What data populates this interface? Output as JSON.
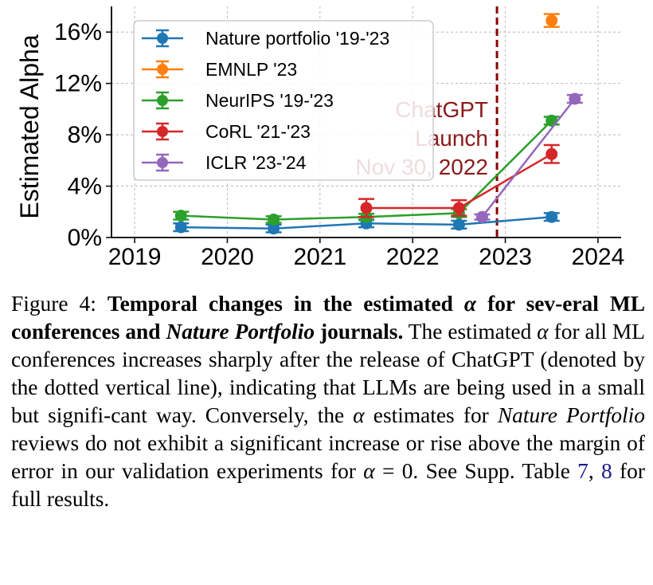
{
  "chart_data": {
    "type": "line",
    "ylabel": "Estimated Alpha",
    "xlabel": "",
    "xlim": [
      2018.75,
      2024.25
    ],
    "ylim": [
      0,
      18
    ],
    "x_ticks": [
      {
        "value": 2019,
        "label": "2019"
      },
      {
        "value": 2020,
        "label": "2020"
      },
      {
        "value": 2021,
        "label": "2021"
      },
      {
        "value": 2022,
        "label": "2022"
      },
      {
        "value": 2023,
        "label": "2023"
      },
      {
        "value": 2024,
        "label": "2024"
      }
    ],
    "y_ticks": [
      {
        "value": 0,
        "label": "0%"
      },
      {
        "value": 4,
        "label": "4%"
      },
      {
        "value": 8,
        "label": "8%"
      },
      {
        "value": 12,
        "label": "12%"
      },
      {
        "value": 16,
        "label": "16%"
      }
    ],
    "grid": true,
    "legend_position": "top-left",
    "series": [
      {
        "name": "Nature portfolio '19-'23",
        "color": "#1f77b4",
        "x": [
          2019.5,
          2020.5,
          2021.5,
          2022.5,
          2023.5
        ],
        "y": [
          0.8,
          0.7,
          1.1,
          1.0,
          1.6
        ],
        "err": [
          0.3,
          0.3,
          0.3,
          0.3,
          0.3
        ]
      },
      {
        "name": "EMNLP '23",
        "color": "#ff7f0e",
        "x": [
          2023.5
        ],
        "y": [
          16.9
        ],
        "err": [
          0.5
        ]
      },
      {
        "name": "NeurIPS '19-'23",
        "color": "#2ca02c",
        "x": [
          2019.5,
          2020.5,
          2021.5,
          2022.5,
          2023.5
        ],
        "y": [
          1.7,
          1.4,
          1.6,
          1.9,
          9.1
        ],
        "err": [
          0.3,
          0.25,
          0.25,
          0.3,
          0.3
        ]
      },
      {
        "name": "CoRL '21-'23",
        "color": "#d62728",
        "x": [
          2021.5,
          2022.5,
          2023.5
        ],
        "y": [
          2.3,
          2.3,
          6.5
        ],
        "err": [
          0.7,
          0.6,
          0.7
        ]
      },
      {
        "name": "ICLR '23-'24",
        "color": "#9467bd",
        "x": [
          2022.75,
          2023.75
        ],
        "y": [
          1.6,
          10.8
        ],
        "err": [
          0.2,
          0.3
        ]
      }
    ],
    "vline": {
      "x": 2022.91,
      "color": "#8b0000",
      "style": "dashed"
    },
    "annotation": {
      "lines": [
        "ChatGPT",
        "Launch",
        "Nov 30, 2022"
      ]
    }
  },
  "caption": {
    "figure_label": "Figure 4: ",
    "bold_part1": "Temporal changes in the estimated ",
    "alpha": "α",
    "bold_part2": " for sev-eral ML conferences and ",
    "bold_italic": "Nature Portfolio",
    "bold_part3": " journals.",
    "text1": " The estimated ",
    "text2": " for all ML conferences increases sharply after the release of ChatGPT (denoted by the dotted vertical line), indicating that LLMs are being used in a small but signifi-cant way. Conversely, the ",
    "text3": " estimates for ",
    "italic2": "Nature Portfolio",
    "text4": " reviews do not exhibit a significant increase or rise above the margin of error in our validation experiments for ",
    "eq": " = 0.",
    "text5": " See Supp. Table ",
    "ref1": "7",
    "comma": ", ",
    "ref2": "8",
    "text6": " for full results."
  }
}
